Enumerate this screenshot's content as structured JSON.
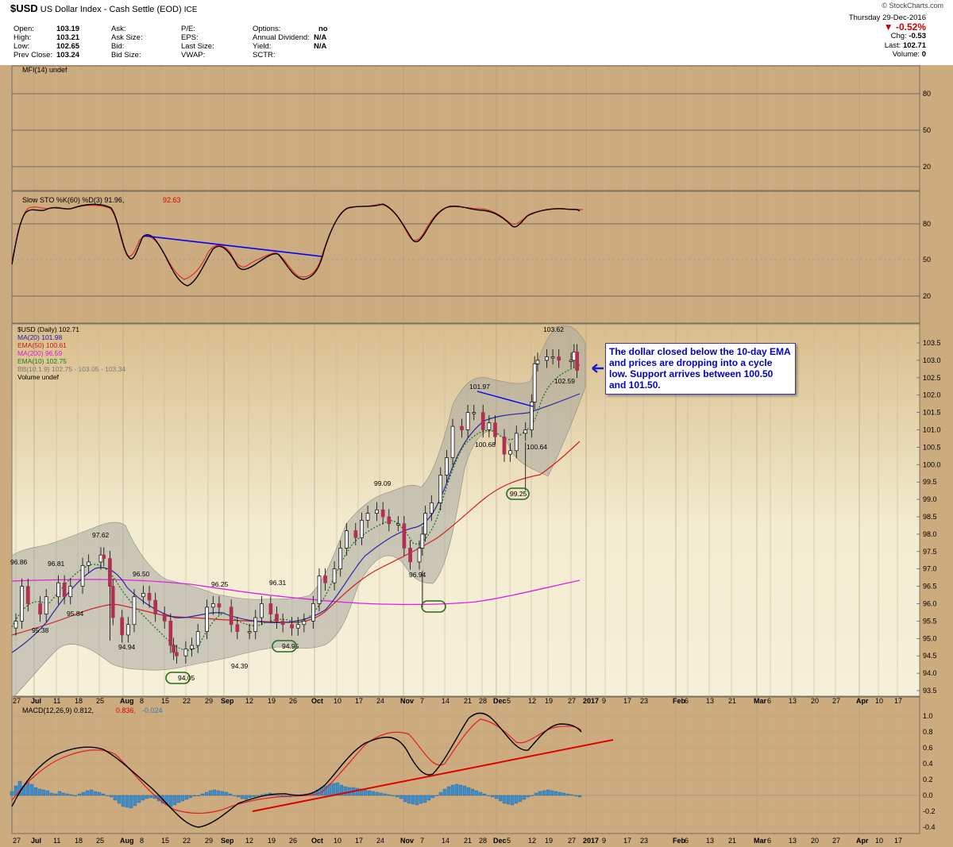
{
  "header": {
    "symbol": "$USD",
    "title": "US Dollar Index - Cash Settle (EOD)",
    "exchange": "ICE",
    "source": "© StockCharts.com",
    "date": "Thursday 29-Dec-2016",
    "change_pct": "▼ -0.52%",
    "chg_label": "Chg:",
    "chg": "-0.53",
    "last_label": "Last:",
    "last": "102.71",
    "volume_label": "Volume:",
    "volume": "0",
    "quote": [
      {
        "l": "Open:",
        "v": "103.19"
      },
      {
        "l": "High:",
        "v": "103.21"
      },
      {
        "l": "Low:",
        "v": "102.65"
      },
      {
        "l": "Prev Close:",
        "v": "103.24"
      },
      {
        "l": "Ask:",
        "v": ""
      },
      {
        "l": "Ask Size:",
        "v": ""
      },
      {
        "l": "Bid:",
        "v": ""
      },
      {
        "l": "Bid Size:",
        "v": ""
      },
      {
        "l": "P/E:",
        "v": ""
      },
      {
        "l": "EPS:",
        "v": ""
      },
      {
        "l": "Last Size:",
        "v": ""
      },
      {
        "l": "VWAP:",
        "v": ""
      },
      {
        "l": "Options:",
        "v": "no"
      },
      {
        "l": "Annual Dividend:",
        "v": "N/A"
      },
      {
        "l": "Yield:",
        "v": "N/A"
      },
      {
        "l": "SCTR:",
        "v": ""
      }
    ]
  },
  "panels": {
    "mfi": {
      "label": "MFI(14) undef",
      "ticks": [
        "80",
        "50",
        "20"
      ]
    },
    "sto": {
      "label": "Slow STO %K(60) %D(3) 91.96,",
      "label2": "92.63",
      "ticks": [
        "80",
        "50",
        "20"
      ]
    },
    "price": {
      "legend": [
        {
          "t": "$USD (Daily) 102.71",
          "c": "#000000"
        },
        {
          "t": "MA(20) 101.98",
          "c": "#1a1aa0"
        },
        {
          "t": "EMA(50) 100.61",
          "c": "#c41a1a"
        },
        {
          "t": "MA(200) 96.59",
          "c": "#d61ad6"
        },
        {
          "t": "EMA(10) 102.75",
          "c": "#1a7a1a"
        },
        {
          "t": "BB(10,1.9) 102.75 - 103.05 - 103.34",
          "c": "#777777"
        },
        {
          "t": "Volume undef",
          "c": "#000000"
        }
      ],
      "ticks": [
        "103.5",
        "103.0",
        "102.5",
        "102.0",
        "101.5",
        "101.0",
        "100.5",
        "100.0",
        "99.5",
        "99.0",
        "98.5",
        "98.0",
        "97.5",
        "97.0",
        "96.5",
        "96.0",
        "95.5",
        "95.0",
        "94.5",
        "94.0",
        "93.5"
      ]
    },
    "macd": {
      "label": "MACD(12,26,9) 0.812,",
      "label2": "0.836,",
      "label3": "-0.024",
      "ticks": [
        "1.0",
        "0.8",
        "0.6",
        "0.4",
        "0.2",
        "0.0",
        "-0.2",
        "-0.4"
      ]
    }
  },
  "x_labels": [
    "27",
    "Jul",
    "11",
    "18",
    "25",
    "Aug",
    "8",
    "15",
    "22",
    "29",
    "Sep",
    "12",
    "19",
    "26",
    "Oct",
    "10",
    "17",
    "24",
    "Nov",
    "7",
    "14",
    "21",
    "28",
    "Dec",
    "5",
    "12",
    "19",
    "27",
    "2017",
    "9",
    "17",
    "23",
    "Feb",
    "6",
    "13",
    "21",
    "Mar",
    "6",
    "13",
    "20",
    "27",
    "Apr",
    "10",
    "17"
  ],
  "annotation": "The dollar closed below the 10-day EMA and prices are dropping into a cycle low. Support arrives between 100.50 and 101.50.",
  "colors": {
    "panel_bg": "#ccab7e",
    "price_bg": "#f3ecd0",
    "up": "#ffffff",
    "down": "#b03050",
    "bb_fill": "#a8a8a0",
    "histogram": "#3a8fd0",
    "trend_blue": "#0000ff",
    "trend_red": "#e00000"
  },
  "chart_data": {
    "type": "line",
    "title": "$USD US Dollar Index - Cash Settle (EOD)",
    "price_close": [
      [
        "2016-06-27",
        95.5
      ],
      [
        "2016-06-29",
        96.5
      ],
      [
        "2016-07-01",
        96.0
      ],
      [
        "2016-07-05",
        95.7
      ],
      [
        "2016-07-07",
        96.2
      ],
      [
        "2016-07-11",
        96.6
      ],
      [
        "2016-07-13",
        96.2
      ],
      [
        "2016-07-15",
        96.5
      ],
      [
        "2016-07-19",
        97.1
      ],
      [
        "2016-07-21",
        97.2
      ],
      [
        "2016-07-25",
        97.4
      ],
      [
        "2016-07-26",
        97.3
      ],
      [
        "2016-07-28",
        96.5
      ],
      [
        "2016-07-29",
        95.6
      ],
      [
        "2016-08-01",
        95.1
      ],
      [
        "2016-08-03",
        95.4
      ],
      [
        "2016-08-05",
        96.2
      ],
      [
        "2016-08-08",
        96.3
      ],
      [
        "2016-08-10",
        96.1
      ],
      [
        "2016-08-12",
        95.7
      ],
      [
        "2016-08-15",
        95.5
      ],
      [
        "2016-08-17",
        94.8
      ],
      [
        "2016-08-18",
        94.6
      ],
      [
        "2016-08-19",
        94.5
      ],
      [
        "2016-08-22",
        94.7
      ],
      [
        "2016-08-24",
        94.8
      ],
      [
        "2016-08-26",
        95.2
      ],
      [
        "2016-08-29",
        95.9
      ],
      [
        "2016-08-31",
        96.0
      ],
      [
        "2016-09-02",
        95.9
      ],
      [
        "2016-09-06",
        95.4
      ],
      [
        "2016-09-08",
        95.2
      ],
      [
        "2016-09-12",
        95.2
      ],
      [
        "2016-09-14",
        95.6
      ],
      [
        "2016-09-16",
        96.0
      ],
      [
        "2016-09-19",
        95.7
      ],
      [
        "2016-09-21",
        95.5
      ],
      [
        "2016-09-23",
        95.4
      ],
      [
        "2016-09-26",
        95.3
      ],
      [
        "2016-09-28",
        95.4
      ],
      [
        "2016-09-30",
        95.5
      ],
      [
        "2016-10-03",
        96.0
      ],
      [
        "2016-10-05",
        96.8
      ],
      [
        "2016-10-07",
        96.6
      ],
      [
        "2016-10-10",
        97.0
      ],
      [
        "2016-10-12",
        97.6
      ],
      [
        "2016-10-14",
        98.1
      ],
      [
        "2016-10-17",
        97.9
      ],
      [
        "2016-10-19",
        98.4
      ],
      [
        "2016-10-21",
        98.6
      ],
      [
        "2016-10-24",
        98.7
      ],
      [
        "2016-10-26",
        98.5
      ],
      [
        "2016-10-28",
        98.3
      ],
      [
        "2016-10-31",
        98.3
      ],
      [
        "2016-11-02",
        97.6
      ],
      [
        "2016-11-04",
        97.2
      ],
      [
        "2016-11-07",
        97.6
      ],
      [
        "2016-11-08",
        98.0
      ],
      [
        "2016-11-09",
        98.6
      ],
      [
        "2016-11-11",
        98.9
      ],
      [
        "2016-11-14",
        99.7
      ],
      [
        "2016-11-16",
        100.2
      ],
      [
        "2016-11-18",
        101.1
      ],
      [
        "2016-11-21",
        101.0
      ],
      [
        "2016-11-23",
        101.5
      ],
      [
        "2016-11-25",
        101.5
      ],
      [
        "2016-11-28",
        101.0
      ],
      [
        "2016-11-30",
        101.2
      ],
      [
        "2016-12-02",
        100.8
      ],
      [
        "2016-12-05",
        100.3
      ],
      [
        "2016-12-07",
        100.4
      ],
      [
        "2016-12-09",
        100.9
      ],
      [
        "2016-12-12",
        101.0
      ],
      [
        "2016-12-14",
        101.8
      ],
      [
        "2016-12-15",
        102.9
      ],
      [
        "2016-12-16",
        103.0
      ],
      [
        "2016-12-19",
        103.1
      ],
      [
        "2016-12-21",
        103.1
      ],
      [
        "2016-12-23",
        103.0
      ],
      [
        "2016-12-27",
        103.0
      ],
      [
        "2016-12-28",
        103.24
      ],
      [
        "2016-12-29",
        102.71
      ]
    ],
    "annotated_values": [
      "96.86",
      "96.81",
      "95.84",
      "95.38",
      "97.62",
      "96.50",
      "94.94",
      "94.05",
      "96.25",
      "94.39",
      "96.31",
      "94.95",
      "99.09",
      "96.94",
      "101.97",
      "100.68",
      "100.64",
      "99.25",
      "103.62",
      "102.59"
    ],
    "ma200_end": 96.59,
    "ema50_end": 100.61,
    "ma20_end": 101.98,
    "ema10_end": 102.75,
    "sto_last": {
      "k": 91.96,
      "d": 92.63
    },
    "macd_last": {
      "macd": 0.812,
      "signal": 0.836,
      "hist": -0.024
    },
    "ylim_price": [
      93.3,
      103.9
    ],
    "ylim_macd": [
      -0.45,
      1.1
    ],
    "xlabel": "",
    "ylabel": ""
  }
}
